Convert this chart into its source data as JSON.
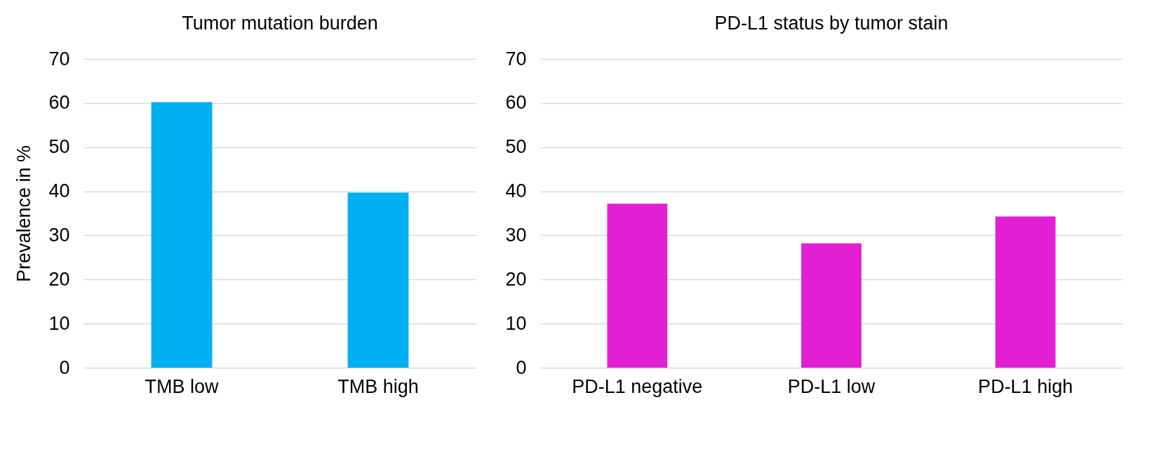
{
  "chart_data": [
    {
      "type": "bar",
      "title": "Tumor mutation burden",
      "ylabel": "Prevalence in %",
      "categories": [
        "TMB low",
        "TMB high"
      ],
      "values": [
        60.2,
        39.7
      ],
      "color": "#00b0f0",
      "ylim": [
        0,
        70
      ],
      "yticks": [
        0,
        10,
        20,
        30,
        40,
        50,
        60,
        70
      ],
      "grid": "y"
    },
    {
      "type": "bar",
      "title": "PD-L1 status by tumor stain",
      "categories": [
        "PD-L1 negative",
        "PD-L1 low",
        "PD-L1 high"
      ],
      "values": [
        37.2,
        28.2,
        34.3
      ],
      "color": "#e31fd4",
      "ylim": [
        0,
        70
      ],
      "yticks": [
        0,
        10,
        20,
        30,
        40,
        50,
        60,
        70
      ],
      "grid": "y"
    }
  ]
}
